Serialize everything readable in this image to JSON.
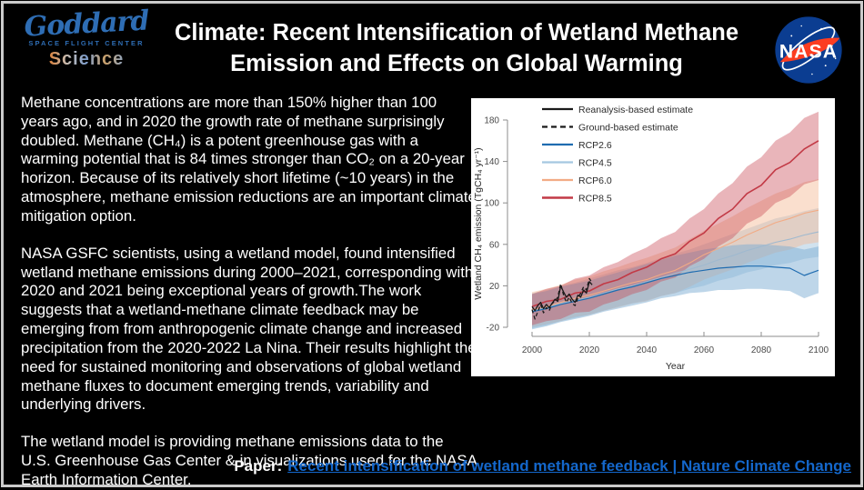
{
  "slide": {
    "title_line1": "Climate: Recent Intensification of Wetland Methane",
    "title_line2": "Emission and Effects on Global Warming",
    "logo": {
      "name": "Goddard",
      "subtitle": "SPACE FLIGHT CENTER",
      "science": "Science",
      "blue": "#2e6db4"
    },
    "nasa": {
      "wordmark": "NASA",
      "circle_color": "#0b3d91",
      "swoosh_color": "#fc3d21"
    }
  },
  "body": {
    "p1": "Methane concentrations are more than 150% higher than 100 years ago, and in 2020 the growth rate of methane surprisingly doubled. Methane (CH₄) is a potent greenhouse gas with a warming potential that is 84 times stronger than CO₂ on a 20-year horizon. Because of its relatively short lifetime (~10 years) in the atmosphere, methane emission reductions are an important climate mitigation option.",
    "p2": "NASA GSFC scientists, using a wetland model, found intensified wetland methane emissions during 2000–2021, corresponding with 2020 and 2021 being exceptional years of growth.The work suggests that a wetland-methane climate feedback may be emerging from from anthropogenic climate change and increased precipitation from the 2020-2022 La Nina. Their results highlight the need for sustained monitoring and observations of global wetland methane fluxes to document emerging trends, variability and underlying drivers.",
    "p3": "The wetland model is providing methane emissions data to the U.S. Greenhouse Gas Center & in visualizations used for the NASA Earth Information Center."
  },
  "paper": {
    "label": "Paper:",
    "link_text": "Recent intensification of wetland methane feedback | Nature Climate Change",
    "link_color": "#1467cb"
  },
  "chart_data": {
    "type": "line",
    "title": "",
    "xlabel": "Year",
    "ylabel": "Wetland CH₄ emission (TgCH₄ yr⁻¹)",
    "xlim": [
      2000,
      2100
    ],
    "ylim": [
      -20,
      180
    ],
    "x_ticks": [
      2000,
      2020,
      2040,
      2060,
      2080,
      2100
    ],
    "y_ticks": [
      -20,
      20,
      60,
      100,
      140,
      180
    ],
    "grid": false,
    "legend_position": "top-left",
    "legend": [
      {
        "label": "Reanalysis-based estimate",
        "color": "#1a1a1a",
        "dash": false
      },
      {
        "label": "Ground-based estimate",
        "color": "#1a1a1a",
        "dash": true
      },
      {
        "label": "RCP2.6",
        "color": "#1f6cb0",
        "dash": false
      },
      {
        "label": "RCP4.5",
        "color": "#a5c8e1",
        "dash": false
      },
      {
        "label": "RCP6.0",
        "color": "#f2ab85",
        "dash": false
      },
      {
        "label": "RCP8.5",
        "color": "#c23a46",
        "dash": false
      }
    ],
    "series": [
      {
        "name": "RCP4.5",
        "color": "#9fb9cf",
        "band_color": "rgba(164,198,222,0.50)",
        "width": 1.1,
        "x": [
          2000,
          2005,
          2010,
          2015,
          2020,
          2025,
          2030,
          2035,
          2040,
          2045,
          2050,
          2055,
          2060,
          2065,
          2070,
          2075,
          2080,
          2085,
          2090,
          2095,
          2100
        ],
        "mean": [
          -4,
          -1,
          3,
          6,
          9,
          13,
          17,
          20,
          24,
          28,
          32,
          36,
          40,
          45,
          49,
          54,
          58,
          62,
          65,
          69,
          72
        ],
        "low": [
          -21,
          -18,
          -14,
          -11,
          -8,
          -4,
          0,
          3,
          6,
          10,
          13,
          17,
          20,
          25,
          28,
          33,
          36,
          40,
          42,
          46,
          48
        ],
        "high": [
          13,
          16,
          20,
          23,
          27,
          31,
          35,
          38,
          42,
          47,
          51,
          55,
          60,
          65,
          70,
          75,
          80,
          85,
          88,
          92,
          95
        ]
      },
      {
        "name": "RCP6.0",
        "color": "#f2ab85",
        "band_color": "rgba(244,184,146,0.45)",
        "width": 1.1,
        "x": [
          2000,
          2005,
          2010,
          2015,
          2020,
          2025,
          2030,
          2035,
          2040,
          2045,
          2050,
          2055,
          2060,
          2065,
          2070,
          2075,
          2080,
          2085,
          2090,
          2095,
          2100
        ],
        "mean": [
          -3,
          0,
          4,
          8,
          11,
          15,
          19,
          23,
          26,
          31,
          35,
          42,
          50,
          56,
          62,
          69,
          75,
          81,
          85,
          90,
          93
        ],
        "low": [
          -20,
          -17,
          -14,
          -10,
          -8,
          -4,
          -1,
          3,
          5,
          10,
          13,
          19,
          26,
          31,
          36,
          42,
          47,
          52,
          55,
          60,
          62
        ],
        "high": [
          14,
          17,
          21,
          26,
          29,
          34,
          38,
          43,
          47,
          52,
          57,
          65,
          73,
          80,
          87,
          95,
          102,
          109,
          114,
          120,
          123
        ]
      },
      {
        "name": "RCP2.6",
        "color": "#1f6cb0",
        "band_color": "rgba(126,173,211,0.50)",
        "width": 1.2,
        "x": [
          2000,
          2005,
          2010,
          2015,
          2020,
          2025,
          2030,
          2035,
          2040,
          2045,
          2050,
          2055,
          2060,
          2065,
          2070,
          2075,
          2080,
          2085,
          2090,
          2095,
          2100
        ],
        "mean": [
          -5,
          -2,
          2,
          5,
          8,
          12,
          16,
          19,
          23,
          27,
          30,
          33,
          35,
          37,
          38,
          39,
          39,
          38,
          37,
          30,
          35
        ],
        "low": [
          -22,
          -19,
          -15,
          -12,
          -9,
          -5,
          -2,
          1,
          4,
          8,
          10,
          13,
          14,
          16,
          16,
          17,
          17,
          16,
          15,
          8,
          13
        ],
        "high": [
          12,
          15,
          19,
          22,
          25,
          29,
          33,
          37,
          41,
          45,
          49,
          52,
          55,
          57,
          59,
          60,
          60,
          59,
          58,
          55,
          58
        ]
      },
      {
        "name": "RCP8.5",
        "color": "#c23a46",
        "band_color": "rgba(199,70,83,0.40)",
        "width": 1.6,
        "x": [
          2000,
          2005,
          2010,
          2015,
          2020,
          2025,
          2030,
          2035,
          2040,
          2045,
          2050,
          2055,
          2060,
          2065,
          2070,
          2075,
          2080,
          2085,
          2090,
          2095,
          2100
        ],
        "mean": [
          0,
          5,
          7,
          13,
          15,
          22,
          26,
          33,
          38,
          46,
          51,
          63,
          71,
          85,
          94,
          109,
          117,
          132,
          139,
          152,
          160
        ],
        "low": [
          -18,
          -14,
          -12,
          -6,
          -5,
          2,
          6,
          12,
          16,
          24,
          28,
          39,
          46,
          58,
          66,
          80,
          87,
          100,
          106,
          118,
          122
        ],
        "high": [
          12,
          17,
          20,
          27,
          30,
          38,
          43,
          51,
          57,
          66,
          72,
          85,
          94,
          109,
          119,
          135,
          144,
          160,
          168,
          182,
          188
        ]
      },
      {
        "name": "Reanalysis-based estimate",
        "color": "#1a1a1a",
        "width": 1.3,
        "x": [
          2000,
          2001,
          2002,
          2003,
          2004,
          2005,
          2006,
          2007,
          2008,
          2009,
          2010,
          2011,
          2012,
          2013,
          2014,
          2015,
          2016,
          2017,
          2018,
          2019,
          2020,
          2021
        ],
        "values": [
          0,
          -4,
          1,
          4,
          -2,
          2,
          -1,
          3,
          7,
          5,
          20,
          14,
          9,
          12,
          7,
          4,
          11,
          9,
          16,
          13,
          24,
          21
        ]
      },
      {
        "name": "Ground-based estimate",
        "color": "#1a1a1a",
        "width": 1.3,
        "dash": true,
        "x": [
          2000,
          2001,
          2002,
          2003,
          2004,
          2005,
          2006,
          2007,
          2008,
          2009,
          2010,
          2011,
          2012,
          2013,
          2014,
          2015,
          2016,
          2017,
          2018,
          2019,
          2020,
          2021
        ],
        "values": [
          -3,
          -12,
          -5,
          2,
          -6,
          -1,
          -4,
          3,
          5,
          9,
          22,
          11,
          4,
          9,
          3,
          1,
          8,
          13,
          19,
          16,
          27,
          23
        ]
      }
    ]
  }
}
